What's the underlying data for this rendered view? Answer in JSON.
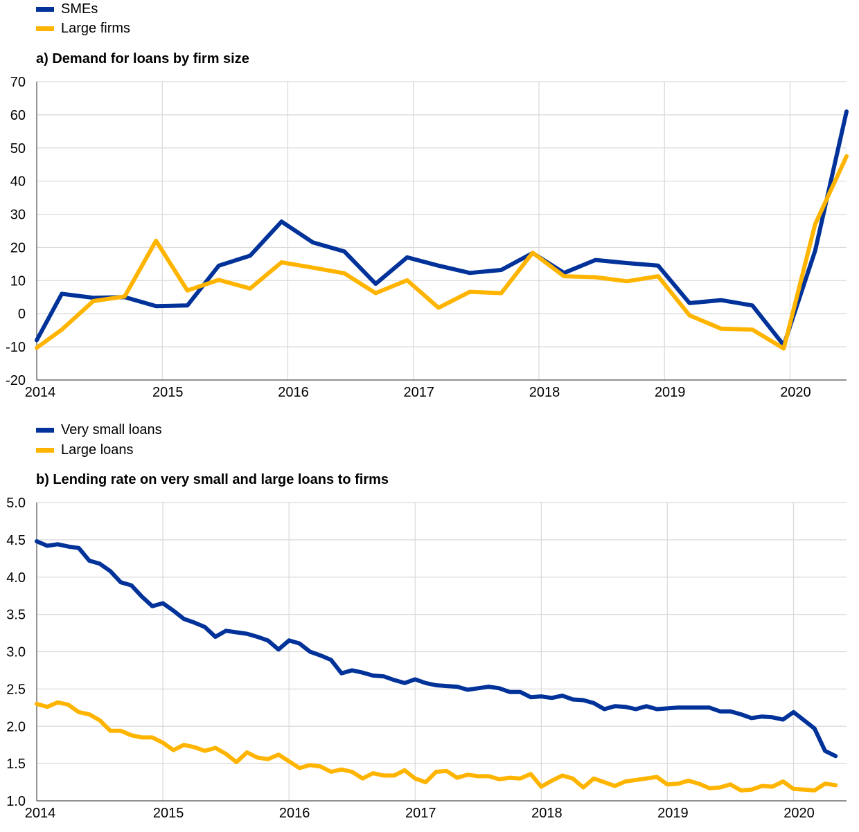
{
  "chart_data": [
    {
      "type": "line",
      "legend_placement": "top-left",
      "legend": [
        {
          "name": "SMEs",
          "color": "#003299"
        },
        {
          "name": "Large firms",
          "color": "#FFB400"
        }
      ],
      "title": "a) Demand for loans by firm size",
      "xlabel": "",
      "ylabel": "",
      "xlim": [
        2014,
        2020.45
      ],
      "ylim": [
        -20,
        70
      ],
      "grid": true,
      "x_ticks": [
        2014,
        2015,
        2016,
        2017,
        2018,
        2019,
        2020
      ],
      "x_tick_labels": [
        "2014",
        "2015",
        "2016",
        "2017",
        "2018",
        "2019",
        "2020"
      ],
      "y_ticks": [
        -20,
        -10,
        0,
        10,
        20,
        30,
        40,
        50,
        60,
        70
      ],
      "y_tick_labels": [
        "-20",
        "-10",
        "0",
        "10",
        "20",
        "30",
        "40",
        "50",
        "60",
        "70"
      ],
      "x": [
        2014.0,
        2014.2,
        2014.45,
        2014.7,
        2014.95,
        2015.2,
        2015.45,
        2015.7,
        2015.95,
        2016.2,
        2016.45,
        2016.7,
        2016.95,
        2017.2,
        2017.45,
        2017.7,
        2017.95,
        2018.2,
        2018.45,
        2018.7,
        2018.95,
        2019.2,
        2019.45,
        2019.7,
        2019.95,
        2020.2,
        2020.45
      ],
      "series": [
        {
          "name": "SMEs",
          "color": "#003299",
          "values": [
            -8,
            6,
            4.8,
            5,
            2.3,
            2.5,
            14.5,
            17.5,
            27.8,
            21.5,
            18.8,
            9,
            17,
            14.5,
            12.3,
            13.2,
            18.3,
            12.3,
            16.2,
            15.3,
            14.5,
            3.2,
            4.1,
            2.5,
            -9.5,
            19,
            61
          ]
        },
        {
          "name": "Large firms",
          "color": "#FFB400",
          "values": [
            -10.3,
            -4.8,
            3.8,
            5.2,
            22,
            7,
            10.2,
            7.6,
            15.5,
            13.9,
            12.2,
            6.2,
            10.1,
            1.8,
            6.6,
            6.2,
            18.4,
            11.3,
            11,
            9.8,
            11.3,
            -0.5,
            -4.5,
            -4.8,
            -10.5,
            27,
            47.5
          ]
        }
      ]
    },
    {
      "type": "line",
      "legend_placement": "top-left",
      "legend": [
        {
          "name": "Very small loans",
          "color": "#003299"
        },
        {
          "name": "Large loans",
          "color": "#FFB400"
        }
      ],
      "title": "b) Lending rate on very small and large loans to firms",
      "xlabel": "",
      "ylabel": "",
      "xlim": [
        2014,
        2020.42
      ],
      "ylim": [
        1.0,
        5.0
      ],
      "grid": true,
      "x_ticks": [
        2014,
        2015,
        2016,
        2017,
        2018,
        2019,
        2020
      ],
      "x_tick_labels": [
        "2014",
        "2015",
        "2016",
        "2017",
        "2018",
        "2019",
        "2020"
      ],
      "y_ticks": [
        1.0,
        1.5,
        2.0,
        2.5,
        3.0,
        3.5,
        4.0,
        4.5,
        5.0
      ],
      "y_tick_labels": [
        "1.0",
        "1.5",
        "2.0",
        "2.5",
        "3.0",
        "3.5",
        "4.0",
        "4.5",
        "5.0"
      ],
      "x_start": 2014.0,
      "x_step": 0.08333,
      "series": [
        {
          "name": "Very small loans",
          "color": "#003299",
          "values": [
            4.48,
            4.42,
            4.44,
            4.41,
            4.39,
            4.22,
            4.18,
            4.08,
            3.93,
            3.89,
            3.74,
            3.61,
            3.65,
            3.55,
            3.44,
            3.39,
            3.33,
            3.2,
            3.28,
            3.26,
            3.24,
            3.2,
            3.15,
            3.03,
            3.15,
            3.11,
            3.0,
            2.95,
            2.89,
            2.71,
            2.75,
            2.72,
            2.68,
            2.67,
            2.62,
            2.58,
            2.63,
            2.58,
            2.55,
            2.54,
            2.53,
            2.49,
            2.51,
            2.53,
            2.51,
            2.46,
            2.46,
            2.39,
            2.4,
            2.38,
            2.41,
            2.36,
            2.35,
            2.31,
            2.23,
            2.27,
            2.26,
            2.23,
            2.27,
            2.23,
            2.24,
            2.25,
            2.25,
            2.25,
            2.25,
            2.2,
            2.2,
            2.16,
            2.11,
            2.13,
            2.12,
            2.09,
            2.19,
            2.08,
            1.97,
            1.67,
            1.6
          ]
        },
        {
          "name": "Large loans",
          "color": "#FFB400",
          "values": [
            2.3,
            2.26,
            2.32,
            2.29,
            2.19,
            2.16,
            2.08,
            1.94,
            1.94,
            1.88,
            1.85,
            1.85,
            1.78,
            1.68,
            1.75,
            1.72,
            1.67,
            1.71,
            1.63,
            1.52,
            1.65,
            1.58,
            1.56,
            1.62,
            1.53,
            1.44,
            1.48,
            1.46,
            1.39,
            1.42,
            1.39,
            1.3,
            1.37,
            1.34,
            1.34,
            1.41,
            1.3,
            1.25,
            1.39,
            1.4,
            1.31,
            1.35,
            1.33,
            1.33,
            1.29,
            1.31,
            1.3,
            1.36,
            1.19,
            1.27,
            1.34,
            1.3,
            1.18,
            1.3,
            1.25,
            1.2,
            1.26,
            1.28,
            1.3,
            1.32,
            1.22,
            1.23,
            1.27,
            1.23,
            1.17,
            1.18,
            1.22,
            1.14,
            1.15,
            1.2,
            1.19,
            1.26,
            1.16,
            1.15,
            1.14,
            1.23,
            1.21
          ]
        }
      ]
    }
  ]
}
